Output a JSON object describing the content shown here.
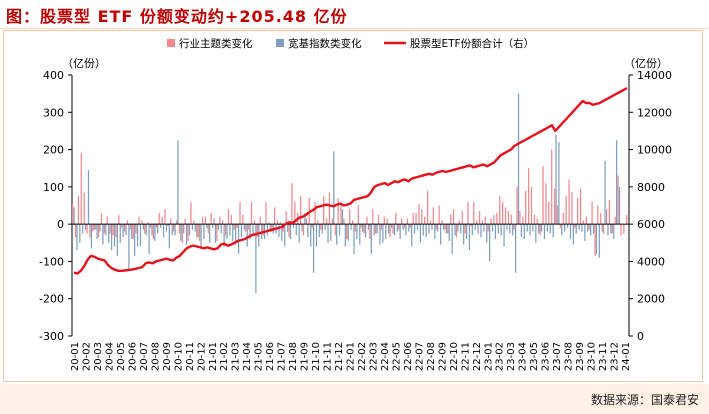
{
  "header": {
    "title": "图：股票型 ETF 份额变动约+205.48 亿份"
  },
  "footer": {
    "source": "数据来源：国泰君安"
  },
  "colors": {
    "industry_bar": "#f2878c",
    "broad_bar": "#7f9fbd",
    "total_line": "#e8101a",
    "title": "#c00000",
    "frame": "#f2c9a8",
    "source_bg": "#fff1e6"
  },
  "chart_data": {
    "type": "bar",
    "left_axis_unit": "（亿份）",
    "right_axis_unit": "（亿份）",
    "ylim_left": [
      -300,
      400
    ],
    "yticks_left": [
      -300,
      -200,
      -100,
      0,
      100,
      200,
      300,
      400
    ],
    "ylim_right": [
      0,
      14000
    ],
    "yticks_right": [
      0,
      2000,
      4000,
      6000,
      8000,
      10000,
      12000,
      14000
    ],
    "grid": false,
    "legend_position": "top-center",
    "x_tick_labels": [
      "20-01",
      "20-02",
      "20-03",
      "20-04",
      "20-05",
      "20-06",
      "20-07",
      "20-08",
      "20-09",
      "20-10",
      "20-11",
      "20-12",
      "21-01",
      "21-02",
      "21-03",
      "21-04",
      "21-05",
      "21-06",
      "21-07",
      "21-08",
      "21-09",
      "21-10",
      "21-11",
      "21-12",
      "22-01",
      "22-02",
      "22-03",
      "22-04",
      "22-05",
      "22-06",
      "22-07",
      "22-08",
      "22-09",
      "22-10",
      "22-11",
      "22-12",
      "23-01",
      "23-02",
      "23-03",
      "23-04",
      "23-05",
      "23-06",
      "23-07",
      "23-08",
      "23-09",
      "23-10",
      "23-11",
      "23-12",
      "24-01"
    ],
    "series": [
      {
        "name": "行业主题类变化",
        "kind": "bar",
        "axis": "left",
        "values": [
          55,
          -35,
          75,
          190,
          85,
          -25,
          -35,
          -20,
          -15,
          -35,
          30,
          -25,
          20,
          -25,
          -30,
          -35,
          25,
          -10,
          -20,
          10,
          -15,
          -40,
          -25,
          20,
          10,
          -25,
          5,
          -10,
          -40,
          -10,
          30,
          20,
          40,
          -5,
          15,
          -20,
          10,
          -25,
          -50,
          15,
          -45,
          60,
          10,
          -35,
          -45,
          20,
          20,
          -25,
          30,
          15,
          -45,
          20,
          10,
          -30,
          40,
          25,
          -15,
          -10,
          60,
          25,
          -20,
          -15,
          60,
          10,
          -35,
          20,
          -30,
          60,
          5,
          -20,
          45,
          10,
          5,
          -20,
          35,
          -35,
          110,
          60,
          30,
          75,
          -30,
          15,
          70,
          -10,
          60,
          10,
          -15,
          75,
          15,
          85,
          15,
          -30,
          70,
          50,
          15,
          -40,
          40,
          10,
          -20,
          50,
          -10,
          -25,
          20,
          -40,
          40,
          -25,
          25,
          -15,
          20,
          15,
          -35,
          -25,
          30,
          -15,
          15,
          -10,
          15,
          -10,
          30,
          30,
          55,
          40,
          20,
          90,
          10,
          45,
          -15,
          50,
          10,
          -15,
          -25,
          25,
          40,
          -35,
          10,
          35,
          -25,
          60,
          -5,
          60,
          10,
          35,
          10,
          20,
          -20,
          15,
          25,
          30,
          75,
          60,
          45,
          35,
          25,
          -15,
          100,
          35,
          20,
          90,
          150,
          100,
          25,
          15,
          -30,
          155,
          110,
          60,
          200,
          95,
          50,
          -10,
          30,
          75,
          120,
          85,
          -10,
          70,
          95,
          10,
          20,
          -15,
          60,
          -85,
          50,
          30,
          -25,
          40,
          65,
          -25,
          20,
          130,
          -30,
          -25,
          25
        ],
        "color": "#f2878c"
      },
      {
        "name": "宽基指数类变化",
        "kind": "bar",
        "axis": "left",
        "values": [
          45,
          -70,
          -50,
          -25,
          -15,
          145,
          -65,
          -15,
          -40,
          -20,
          -55,
          -30,
          -50,
          -70,
          -60,
          -85,
          -50,
          -35,
          -30,
          -120,
          -40,
          -85,
          -60,
          -60,
          -15,
          -30,
          -80,
          -30,
          -45,
          -25,
          -10,
          -35,
          -20,
          -65,
          -30,
          -30,
          225,
          -45,
          -25,
          -55,
          -30,
          -15,
          -20,
          -35,
          -60,
          -40,
          -10,
          -50,
          -10,
          -50,
          -15,
          -25,
          -60,
          -40,
          -30,
          -45,
          -55,
          -80,
          -35,
          -15,
          -60,
          -40,
          -30,
          -185,
          -60,
          -40,
          -40,
          -30,
          -15,
          -25,
          -25,
          -35,
          -45,
          -60,
          -20,
          -40,
          -10,
          -30,
          -50,
          -20,
          30,
          -35,
          -60,
          -130,
          -60,
          -35,
          -25,
          -15,
          -50,
          -45,
          195,
          -55,
          -30,
          40,
          -60,
          -45,
          -15,
          -80,
          -40,
          -55,
          -20,
          -35,
          -15,
          -80,
          -30,
          -25,
          -55,
          -50,
          -40,
          -25,
          -10,
          -30,
          -20,
          -40,
          -15,
          -30,
          -20,
          -60,
          -25,
          -15,
          -50,
          -30,
          -35,
          -25,
          -15,
          -40,
          -20,
          -55,
          -15,
          -25,
          -45,
          -80,
          -30,
          -20,
          -25,
          -55,
          -40,
          -70,
          -30,
          -15,
          -25,
          -35,
          -20,
          -50,
          -100,
          -20,
          -40,
          -25,
          -30,
          -60,
          -15,
          -25,
          -30,
          -130,
          350,
          -35,
          -40,
          -20,
          -30,
          -20,
          -50,
          -25,
          -20,
          -40,
          -20,
          -25,
          -35,
          240,
          220,
          -30,
          -20,
          -10,
          -40,
          -55,
          -25,
          -15,
          -20,
          -45,
          -20,
          -30,
          -25,
          -80,
          -90,
          -20,
          170,
          -30,
          -25,
          -40,
          225,
          100
        ],
        "color": "#7f9fbd"
      },
      {
        "name": "股票型ETF份额合计（右）",
        "kind": "line",
        "axis": "right",
        "values": [
          3400,
          3350,
          3500,
          3750,
          4100,
          4300,
          4250,
          4150,
          4100,
          4050,
          3800,
          3650,
          3550,
          3500,
          3500,
          3520,
          3540,
          3560,
          3600,
          3650,
          3700,
          3900,
          3950,
          3900,
          4000,
          4050,
          4100,
          4150,
          4100,
          4050,
          4200,
          4300,
          4500,
          4700,
          4800,
          4850,
          4800,
          4750,
          4700,
          4750,
          4700,
          4650,
          4700,
          4900,
          4950,
          4850,
          4900,
          5000,
          5100,
          5150,
          5200,
          5300,
          5400,
          5450,
          5500,
          5550,
          5600,
          5650,
          5700,
          5750,
          5800,
          5850,
          6000,
          6100,
          6050,
          6200,
          6350,
          6400,
          6500,
          6650,
          6750,
          6900,
          6950,
          7000,
          7050,
          7000,
          6950,
          7050,
          7100,
          7000,
          7050,
          7100,
          7300,
          7350,
          7400,
          7450,
          7500,
          7700,
          8000,
          8100,
          8150,
          8200,
          8100,
          8200,
          8300,
          8250,
          8350,
          8400,
          8300,
          8450,
          8500,
          8550,
          8600,
          8650,
          8700,
          8650,
          8750,
          8800,
          8850,
          8800,
          8850,
          8900,
          8950,
          9000,
          9050,
          9100,
          9150,
          9050,
          9100,
          9150,
          9200,
          9100,
          9200,
          9300,
          9500,
          9700,
          9800,
          9900,
          10000,
          10200,
          10300,
          10400,
          10500,
          10600,
          10700,
          10800,
          10900,
          11000,
          11100,
          11200,
          11300,
          11000,
          11200,
          11400,
          11600,
          11800,
          12000,
          12200,
          12400,
          12600,
          12500,
          12500,
          12400,
          12450,
          12500,
          12600,
          12700,
          12800,
          12900,
          13000,
          13100,
          13200,
          13300
        ],
        "color": "#e8101a"
      }
    ]
  }
}
